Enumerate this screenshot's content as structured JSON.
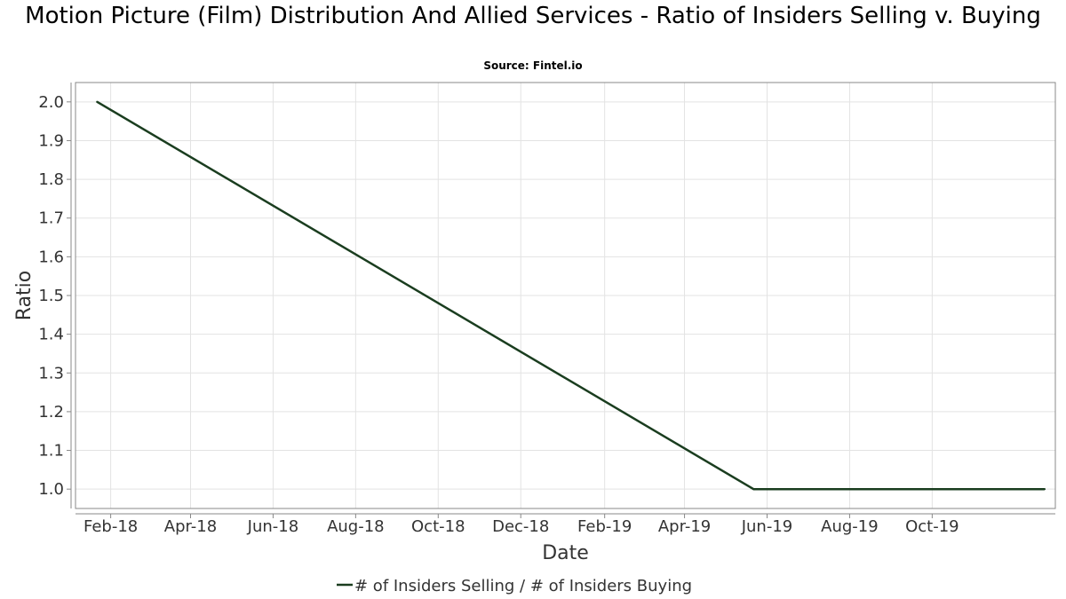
{
  "chart_data": {
    "type": "line",
    "title": "Motion Picture (Film) Distribution And Allied Services - Ratio of Insiders Selling v. Buying",
    "subtitle": "Source: Fintel.io",
    "xlabel": "Date",
    "ylabel": "Ratio",
    "x_tick_labels": [
      "Feb-18",
      "Apr-18",
      "Jun-18",
      "Aug-18",
      "Oct-18",
      "Dec-18",
      "Feb-19",
      "Apr-19",
      "Jun-19",
      "Aug-19",
      "Oct-19"
    ],
    "x_tick_dates": [
      "2018-02-01",
      "2018-04-01",
      "2018-06-01",
      "2018-08-01",
      "2018-10-01",
      "2018-12-01",
      "2019-02-01",
      "2019-04-01",
      "2019-06-01",
      "2019-08-01",
      "2019-10-01"
    ],
    "y_tick_labels": [
      "1.0",
      "1.1",
      "1.2",
      "1.3",
      "1.4",
      "1.5",
      "1.6",
      "1.7",
      "1.8",
      "1.9",
      "2.0"
    ],
    "ylim": [
      0.95,
      2.05
    ],
    "xlim": [
      "2018-01-06",
      "2019-12-31"
    ],
    "grid": true,
    "legend_position": "bottom-center",
    "series": [
      {
        "name": "# of Insiders Selling / # of Insiders Buying",
        "color": "#1a3d1f",
        "x": [
          "2018-01-22",
          "2019-05-22",
          "2019-12-23"
        ],
        "y": [
          2.0,
          1.0,
          1.0
        ]
      }
    ]
  }
}
